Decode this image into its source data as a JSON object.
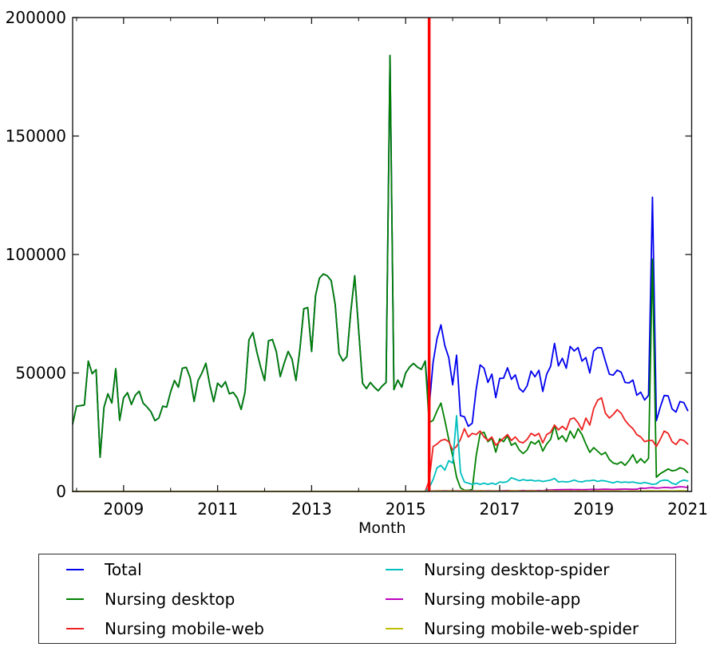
{
  "figure": {
    "background": "#ffffff",
    "frame_color": "#1a1a1a"
  },
  "axes": {
    "xlabel": "Month",
    "ylabel": "",
    "ylim": [
      0,
      200000
    ],
    "y_tick_values": [
      0,
      50000,
      100000,
      150000,
      200000
    ],
    "y_tick_labels": [
      "0",
      "50000",
      "100000",
      "150000",
      "200000"
    ],
    "x_major_tick_years": [
      2009,
      2011,
      2013,
      2015,
      2017,
      2019,
      2021
    ],
    "x_tick_labels": [
      "2009",
      "2011",
      "2013",
      "2015",
      "2017",
      "2019",
      "2021"
    ],
    "x_minor_tick_years": [
      2008,
      2010,
      2012,
      2014,
      2016,
      2018,
      2020
    ],
    "grid": "off"
  },
  "annotations": {
    "vline": {
      "position": "2015-07",
      "color": "#ff0000",
      "width": 3.5
    }
  },
  "chart_data": {
    "type": "line",
    "xlabel": "Month",
    "x_start": "2007-12",
    "x_end": "2021-01",
    "x_interval": "1 month",
    "ylim": [
      0,
      200000
    ],
    "legend_position": "bottom",
    "series": [
      {
        "name": "Total",
        "color": "#0000ee",
        "start": "2007-12",
        "values": [
          28500,
          36000,
          36200,
          36500,
          55000,
          49700,
          51400,
          14400,
          35600,
          41200,
          37300,
          51800,
          30000,
          39500,
          41700,
          36700,
          40600,
          42300,
          37300,
          35600,
          33600,
          29900,
          31000,
          36000,
          35600,
          42000,
          46800,
          44000,
          52000,
          52400,
          48000,
          38000,
          46800,
          50000,
          54100,
          45000,
          37900,
          45700,
          44000,
          46300,
          41200,
          41800,
          39500,
          34600,
          42000,
          64000,
          67000,
          59000,
          52400,
          46800,
          63600,
          64100,
          59000,
          48500,
          54100,
          59100,
          55800,
          46800,
          60000,
          77100,
          77600,
          59100,
          82700,
          90000,
          91800,
          91000,
          89000,
          79000,
          58100,
          55100,
          56900,
          76000,
          91000,
          68200,
          45700,
          43400,
          46000,
          44000,
          42500,
          44500,
          46000,
          184000,
          43000,
          47000,
          44000,
          50000,
          52500,
          54000,
          52500,
          51500,
          55000,
          35500,
          54500,
          64500,
          70300,
          61500,
          56500,
          45000,
          57500,
          32000,
          31500,
          27500,
          28800,
          43000,
          53400,
          52000,
          46000,
          49500,
          39600,
          47700,
          47800,
          52200,
          47300,
          49200,
          43500,
          42000,
          44600,
          50800,
          48400,
          51100,
          42200,
          49500,
          52800,
          62500,
          53000,
          56200,
          52000,
          61200,
          59300,
          60700,
          55000,
          56500,
          50000,
          59300,
          60700,
          60600,
          54900,
          49500,
          49100,
          51200,
          50300,
          46000,
          45800,
          47000,
          40600,
          41900,
          38600,
          40600,
          124200,
          29900,
          35600,
          40500,
          40300,
          34800,
          33500,
          37900,
          37500,
          34100
        ]
      },
      {
        "name": "Nursing desktop",
        "color": "#008000",
        "start": "2007-12",
        "values": [
          28500,
          36000,
          36200,
          36500,
          55000,
          49700,
          51400,
          14400,
          35600,
          41200,
          37300,
          51800,
          30000,
          39500,
          41700,
          36700,
          40600,
          42300,
          37300,
          35600,
          33600,
          29900,
          31000,
          36000,
          35600,
          42000,
          46800,
          44000,
          52000,
          52400,
          48000,
          38000,
          46800,
          50000,
          54100,
          45000,
          37900,
          45700,
          44000,
          46300,
          41200,
          41800,
          39500,
          34600,
          42000,
          64000,
          67000,
          59000,
          52400,
          46800,
          63600,
          64100,
          59000,
          48500,
          54100,
          59100,
          55800,
          46800,
          60000,
          77100,
          77600,
          59100,
          82700,
          90000,
          91800,
          91000,
          89000,
          79000,
          58100,
          55100,
          56900,
          76000,
          91000,
          68200,
          45700,
          43400,
          46000,
          44000,
          42500,
          44500,
          46000,
          184000,
          43000,
          47000,
          44000,
          50000,
          52500,
          54000,
          52500,
          51500,
          55000,
          29000,
          30000,
          34000,
          37300,
          30000,
          22000,
          15000,
          6000,
          1500,
          500,
          500,
          800,
          15000,
          24400,
          25000,
          21000,
          22500,
          16600,
          22200,
          21000,
          23500,
          19500,
          20500,
          17500,
          16000,
          17500,
          21000,
          20000,
          21500,
          17000,
          20000,
          22000,
          28000,
          22000,
          23500,
          21000,
          25500,
          22500,
          26500,
          24000,
          20000,
          16500,
          18500,
          17000,
          15500,
          16500,
          13500,
          12000,
          11500,
          12500,
          11000,
          13000,
          15500,
          12000,
          13800,
          12100,
          14000,
          98000,
          6000,
          7500,
          8500,
          9500,
          8700,
          9000,
          10000,
          9500,
          8000
        ]
      },
      {
        "name": "Nursing mobile-web",
        "color": "#ee2222",
        "start": "2015-07",
        "prepend_zeros": 91,
        "values": [
          4500,
          19000,
          20000,
          21500,
          22000,
          21000,
          17500,
          19000,
          22000,
          26500,
          23000,
          24500,
          24000,
          25500,
          23000,
          21500,
          23000,
          19500,
          21000,
          22500,
          24000,
          21500,
          23000,
          21000,
          20500,
          22000,
          24500,
          23500,
          24500,
          20500,
          24000,
          25000,
          28000,
          26000,
          27500,
          26000,
          30500,
          31000,
          29000,
          26000,
          31000,
          28000,
          35000,
          38500,
          39500,
          33000,
          31000,
          32500,
          34500,
          33000,
          30000,
          28000,
          26500,
          24000,
          23000,
          21000,
          21500,
          21500,
          19000,
          22000,
          25500,
          24500,
          21000,
          19800,
          22000,
          21500,
          20000
        ]
      },
      {
        "name": "Nursing desktop-spider",
        "color": "#00bfbf",
        "start": "2015-07",
        "prepend_zeros": 91,
        "values": [
          1500,
          5000,
          10000,
          11000,
          9000,
          13000,
          12000,
          32000,
          8000,
          4000,
          3500,
          3000,
          3500,
          3000,
          3500,
          3000,
          3500,
          3000,
          4000,
          3800,
          4200,
          5800,
          5200,
          4500,
          5000,
          4600,
          4800,
          4400,
          4600,
          4200,
          4500,
          4800,
          5500,
          4000,
          4200,
          4000,
          4200,
          4800,
          4200,
          4000,
          4500,
          4500,
          4800,
          4200,
          4600,
          4400,
          4000,
          3600,
          4200,
          3800,
          4000,
          3800,
          4000,
          3600,
          3400,
          3800,
          3400,
          3000,
          3200,
          4400,
          4800,
          4600,
          3400,
          3000,
          4200,
          4800,
          4400
        ]
      },
      {
        "name": "Nursing mobile-app",
        "color": "#bf00bf",
        "start": "2015-07",
        "prepend_zeros": 91,
        "values": [
          100,
          200,
          300,
          300,
          300,
          300,
          300,
          250,
          300,
          350,
          300,
          300,
          300,
          350,
          300,
          300,
          300,
          250,
          300,
          350,
          400,
          350,
          300,
          350,
          400,
          350,
          400,
          350,
          400,
          350,
          600,
          650,
          700,
          750,
          800,
          800,
          850,
          800,
          800,
          750,
          800,
          850,
          900,
          850,
          900,
          950,
          900,
          850,
          900,
          950,
          1000,
          950,
          900,
          950,
          1400,
          1300,
          1500,
          1600,
          1400,
          1500,
          1700,
          1600,
          1500,
          1800,
          2000,
          1900,
          1700
        ]
      },
      {
        "name": "Nursing mobile-web-spider",
        "color": "#bfbf00",
        "start": "2015-07",
        "prepend_zeros": 91,
        "values": [
          100,
          150,
          200,
          200,
          150,
          200,
          200,
          150,
          200,
          250,
          200,
          150,
          200,
          250,
          200,
          150,
          200,
          150,
          200,
          150,
          200,
          250,
          200,
          200,
          150,
          200,
          250,
          200,
          150,
          200,
          200,
          250,
          200,
          150,
          200,
          250,
          200,
          150,
          200,
          250,
          200,
          150,
          200,
          250,
          300,
          200,
          250,
          200,
          250,
          200,
          150,
          200,
          250,
          200,
          250,
          200,
          300,
          250,
          200,
          250,
          300,
          250,
          200,
          250,
          300,
          250,
          200
        ]
      }
    ]
  },
  "legend": {
    "columns": 2,
    "entries": [
      "Total",
      "Nursing desktop",
      "Nursing mobile-web",
      "Nursing desktop-spider",
      "Nursing mobile-app",
      "Nursing mobile-web-spider"
    ]
  }
}
